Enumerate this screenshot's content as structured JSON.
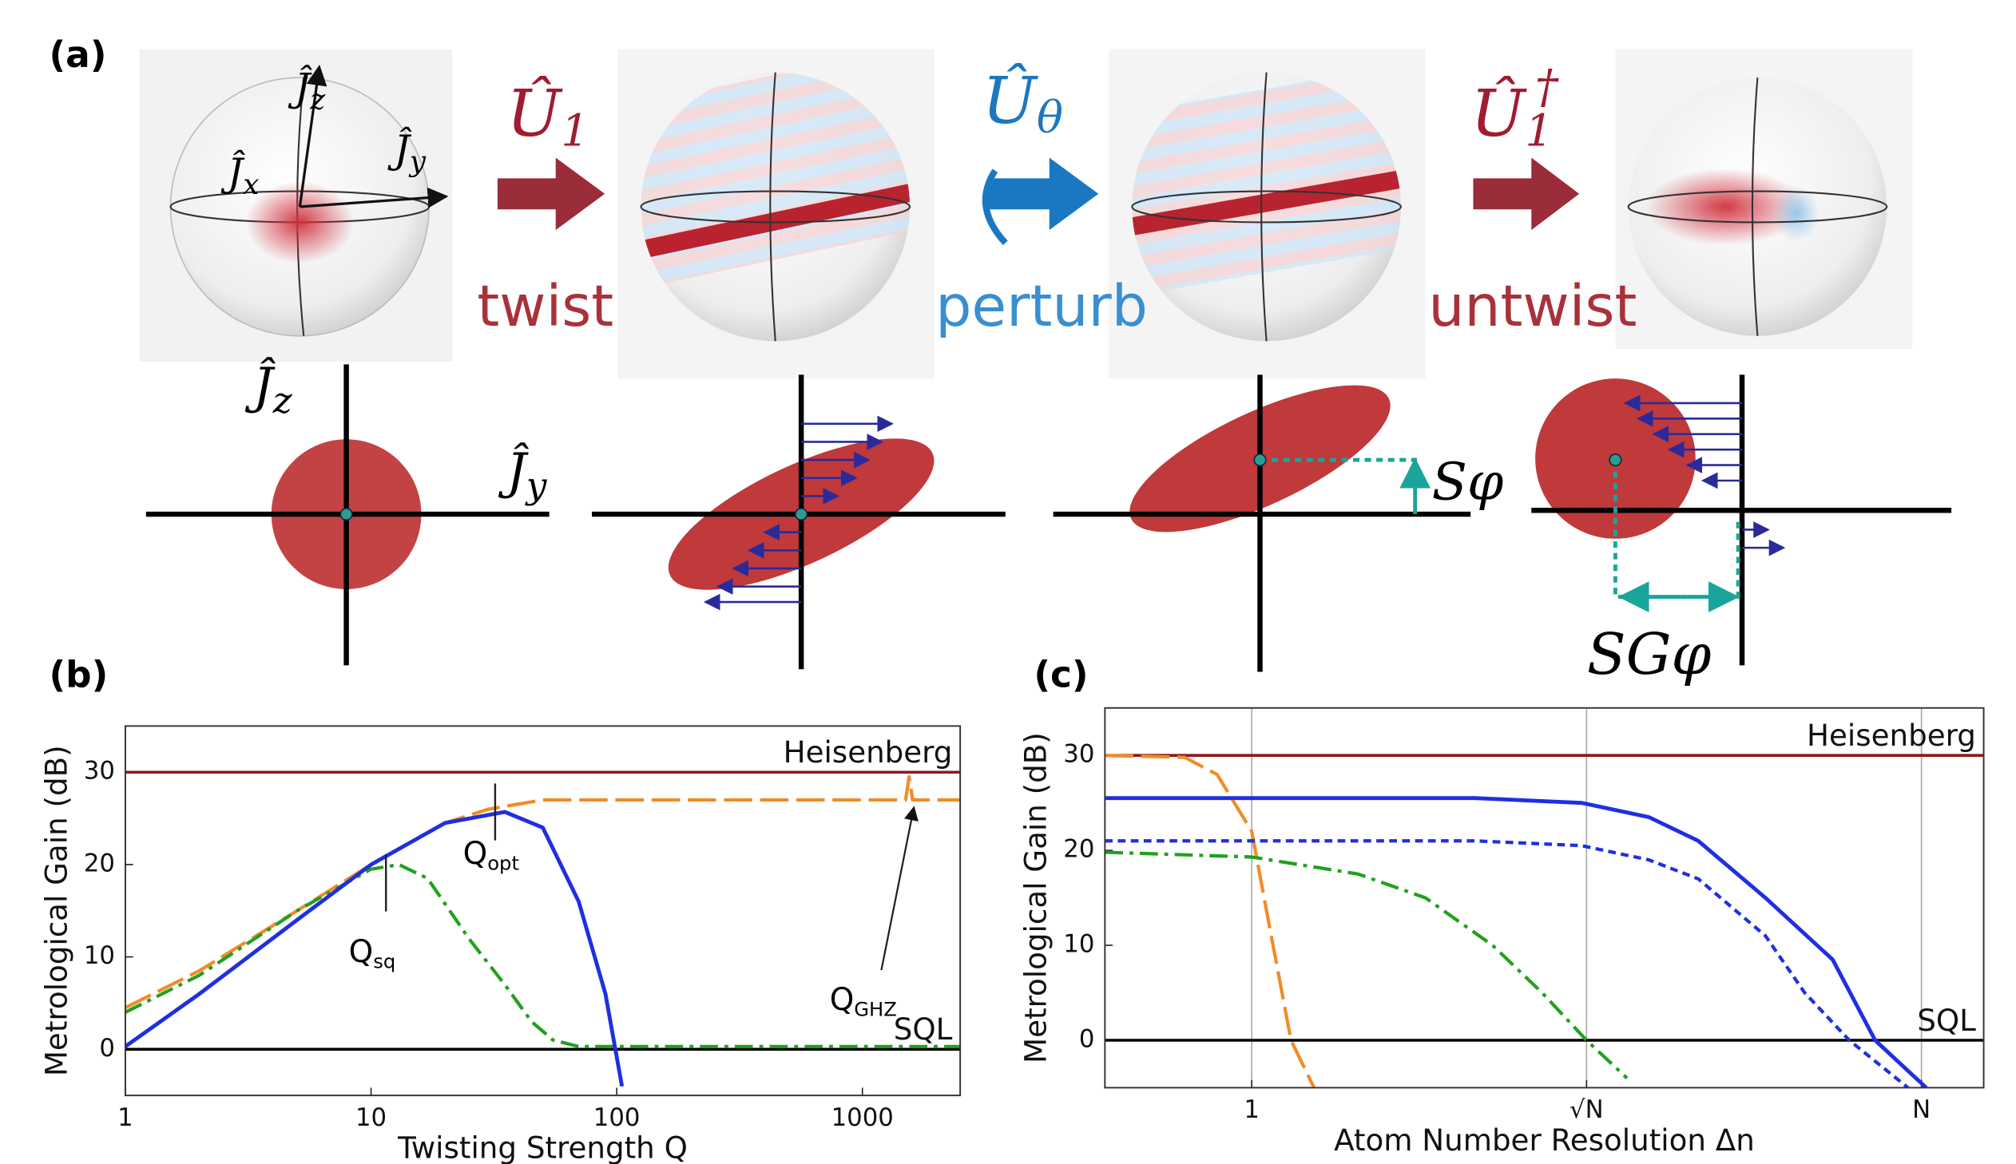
{
  "figure": {
    "panel_labels": [
      "(a)",
      "(b)",
      "(c)"
    ]
  },
  "diagram": {
    "operators": [
      {
        "text": "Û",
        "sub": "1"
      },
      {
        "text": "Û",
        "sub": "θ"
      },
      {
        "text": "Û",
        "sub": "1",
        "sup": "†"
      }
    ],
    "steps": [
      "twist",
      "perturb",
      "untwist"
    ],
    "sphere_axes": [
      {
        "text": "Ĵ",
        "sub": "z"
      },
      {
        "text": "Ĵ",
        "sub": "x"
      },
      {
        "text": "Ĵ",
        "sub": "y"
      }
    ],
    "phase_axes": [
      {
        "text": "Ĵ",
        "sub": "z"
      },
      {
        "text": "Ĵ",
        "sub": "y"
      }
    ],
    "shifts": [
      "Sφ",
      "SGφ"
    ]
  },
  "chart_data": [
    {
      "type": "line",
      "xlabel": "Twisting Strength Q",
      "ylabel": "Metrological Gain (dB)",
      "xscale": "log",
      "xlim": [
        1,
        2500
      ],
      "ylim": [
        -5,
        35
      ],
      "xticks": [
        1,
        10,
        100,
        1000
      ],
      "yticks": [
        0,
        10,
        20,
        30
      ],
      "hlines": [
        {
          "label": "Heisenberg",
          "value": 30,
          "color": "#8b1a1a"
        },
        {
          "label": "SQL",
          "value": 0,
          "color": "#000000"
        }
      ],
      "series": [
        {
          "color": "#f08c28",
          "dash": "dashed",
          "x": [
            1,
            2,
            5,
            10,
            20,
            30,
            50,
            1500,
            1550,
            1600,
            2500
          ],
          "values": [
            4.5,
            8.5,
            15,
            20,
            24.5,
            26,
            27,
            27,
            29.5,
            27,
            27
          ]
        },
        {
          "color": "#22a01e",
          "dash": "dashdot",
          "x": [
            1,
            2,
            5,
            10,
            13,
            17,
            25,
            35,
            45,
            55,
            70,
            100,
            2500
          ],
          "values": [
            4,
            8,
            15,
            19.5,
            20,
            18.5,
            12,
            7,
            3,
            1,
            0.3,
            0.3,
            0.3
          ]
        },
        {
          "color": "#1f2fe0",
          "dash": "solid",
          "x": [
            1,
            2,
            5,
            10,
            20,
            35,
            50,
            70,
            90,
            105
          ],
          "values": [
            0.3,
            6,
            14,
            20,
            24.5,
            25.7,
            24,
            16,
            6,
            -4
          ]
        }
      ],
      "annotations": [
        {
          "text": "Q",
          "sub": "sq"
        },
        {
          "text": "Q",
          "sub": "opt"
        },
        {
          "text": "Q",
          "sub": "GHZ"
        }
      ]
    },
    {
      "type": "line",
      "xlabel": "Atom Number Resolution Δn",
      "ylabel": "Metrological Gain (dB)",
      "xscale": "log",
      "xlim": [
        0.22,
        1900
      ],
      "ylim": [
        -5,
        35
      ],
      "grid": "x",
      "xticks": [
        {
          "value": 1,
          "label": "1"
        },
        {
          "value": 31.6,
          "label": "√N"
        },
        {
          "value": 1000,
          "label": "N"
        }
      ],
      "yticks": [
        0,
        10,
        20,
        30
      ],
      "hlines": [
        {
          "label": "Heisenberg",
          "value": 30,
          "color": "#8b1a1a"
        },
        {
          "label": "SQL",
          "value": 0,
          "color": "#000000"
        }
      ],
      "series": [
        {
          "color": "#f08c28",
          "dash": "dashed",
          "x": [
            0.22,
            0.5,
            0.7,
            1,
            1.2,
            1.5,
            1.9
          ],
          "values": [
            30,
            29.8,
            28,
            22,
            12,
            0,
            -5
          ]
        },
        {
          "color": "#22a01e",
          "dash": "dashdot",
          "x": [
            0.22,
            1,
            3,
            6,
            12,
            20,
            31.6,
            48
          ],
          "values": [
            19.8,
            19.3,
            17.5,
            15,
            10,
            5,
            0,
            -4
          ]
        },
        {
          "color": "#1f2fe0",
          "dash": "dotted",
          "x": [
            0.22,
            10,
            30,
            60,
            100,
            200,
            300,
            475,
            870
          ],
          "values": [
            21,
            21,
            20.5,
            19,
            17,
            11,
            5,
            0,
            -5
          ]
        },
        {
          "color": "#1f2fe0",
          "dash": "solid",
          "x": [
            0.22,
            10,
            30,
            60,
            100,
            200,
            400,
            620,
            1050
          ],
          "values": [
            25.5,
            25.5,
            25,
            23.5,
            21,
            15,
            8.5,
            0,
            -5
          ]
        }
      ]
    }
  ]
}
